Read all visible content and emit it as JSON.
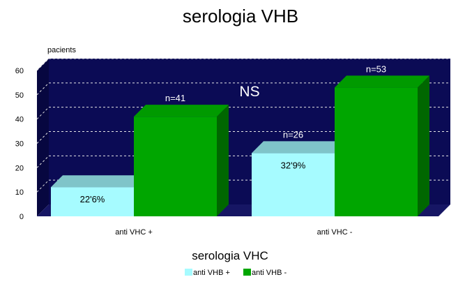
{
  "chart_data": {
    "type": "bar",
    "title": "serologia VHB",
    "xlabel": "serologia VHC",
    "ylabel": "pacients",
    "ylim": [
      0,
      60
    ],
    "yticks": [
      0,
      10,
      20,
      30,
      40,
      50,
      60
    ],
    "categories": [
      "anti VHC +",
      "anti VHC -"
    ],
    "series": [
      {
        "name": "anti VHB +",
        "values": [
          12,
          26
        ]
      },
      {
        "name": "anti VHB -",
        "values": [
          41,
          53
        ]
      }
    ],
    "bar_annotations": [
      {
        "series": 0,
        "category": 0,
        "text": "22'6%"
      },
      {
        "series": 0,
        "category": 1,
        "text": "32'9%"
      },
      {
        "series": 1,
        "category": 0,
        "text": "n=41"
      },
      {
        "series": 0,
        "category": 1,
        "text": "n=26"
      },
      {
        "series": 1,
        "category": 1,
        "text": "n=53"
      }
    ],
    "significance_label": "NS",
    "grid": true,
    "legend_position": "bottom",
    "colors": {
      "plot_background": "#0b0b55",
      "wall_side": "#070740",
      "floor": "#161664",
      "gridline": "#e6e6e6",
      "series_0_front": "#a6fbff",
      "series_0_top": "#7fc4c9",
      "series_0_side": "#7cd8de",
      "series_1_front": "#00a600",
      "series_1_top": "#009a00",
      "series_1_side": "#006700"
    }
  }
}
